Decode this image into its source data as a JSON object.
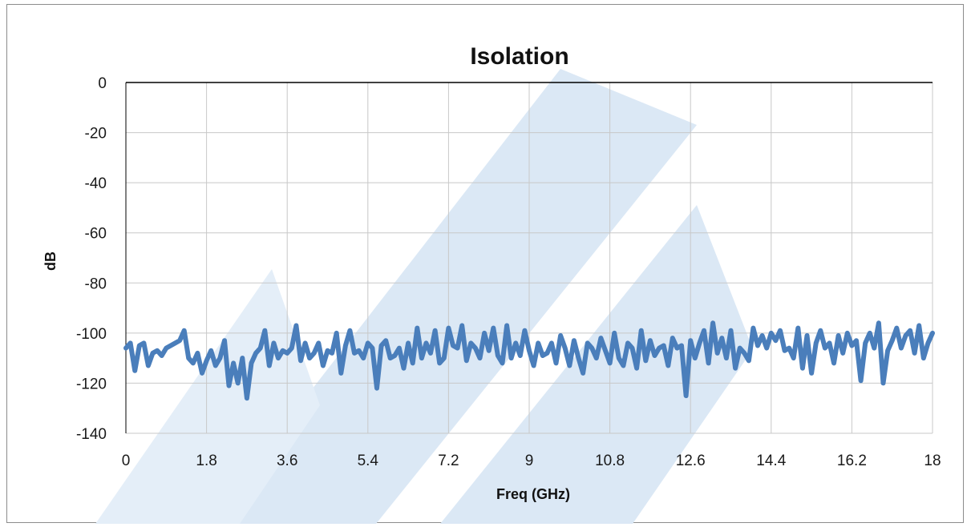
{
  "chart_data": {
    "type": "line",
    "title": "Isolation",
    "xlabel": "Freq (GHz)",
    "ylabel": "dB",
    "xlim": [
      0,
      18
    ],
    "ylim": [
      -140,
      0
    ],
    "xticks": [
      "0",
      "1.8",
      "3.6",
      "5.4",
      "7.2",
      "9",
      "10.8",
      "12.6",
      "14.4",
      "16.2",
      "18"
    ],
    "yticks": [
      "0",
      "-20",
      "-40",
      "-60",
      "-80",
      "-100",
      "-120",
      "-140"
    ],
    "grid": true,
    "legend": "none",
    "colors": {
      "series": "#4a7ebb",
      "grid": "#c8c8c8",
      "watermark": "#dbe8f5"
    },
    "series": [
      {
        "x": [
          0,
          0.1,
          0.2,
          0.3,
          0.4,
          0.5,
          0.6,
          0.7,
          0.8,
          0.9,
          1.0,
          1.1,
          1.2,
          1.3,
          1.4,
          1.5,
          1.6,
          1.7,
          1.8,
          1.9,
          2.0,
          2.1,
          2.2,
          2.3,
          2.4,
          2.5,
          2.6,
          2.7,
          2.8,
          2.9,
          3.0,
          3.1,
          3.2,
          3.3,
          3.4,
          3.5,
          3.6,
          3.7,
          3.8,
          3.9,
          4.0,
          4.1,
          4.2,
          4.3,
          4.4,
          4.5,
          4.6,
          4.7,
          4.8,
          4.9,
          5.0,
          5.1,
          5.2,
          5.3,
          5.4,
          5.5,
          5.6,
          5.7,
          5.8,
          5.9,
          6.0,
          6.1,
          6.2,
          6.3,
          6.4,
          6.5,
          6.6,
          6.7,
          6.8,
          6.9,
          7.0,
          7.1,
          7.2,
          7.3,
          7.4,
          7.5,
          7.6,
          7.7,
          7.8,
          7.9,
          8.0,
          8.1,
          8.2,
          8.3,
          8.4,
          8.5,
          8.6,
          8.7,
          8.8,
          8.9,
          9.0,
          9.1,
          9.2,
          9.3,
          9.4,
          9.5,
          9.6,
          9.7,
          9.8,
          9.9,
          10.0,
          10.1,
          10.2,
          10.3,
          10.4,
          10.5,
          10.6,
          10.7,
          10.8,
          10.9,
          11.0,
          11.1,
          11.2,
          11.3,
          11.4,
          11.5,
          11.6,
          11.7,
          11.8,
          11.9,
          12.0,
          12.1,
          12.2,
          12.3,
          12.4,
          12.5,
          12.6,
          12.7,
          12.8,
          12.9,
          13.0,
          13.1,
          13.2,
          13.3,
          13.4,
          13.5,
          13.6,
          13.7,
          13.8,
          13.9,
          14.0,
          14.1,
          14.2,
          14.3,
          14.4,
          14.5,
          14.6,
          14.7,
          14.8,
          14.9,
          15.0,
          15.1,
          15.2,
          15.3,
          15.4,
          15.5,
          15.6,
          15.7,
          15.8,
          15.9,
          16.0,
          16.1,
          16.2,
          16.3,
          16.4,
          16.5,
          16.6,
          16.7,
          16.8,
          16.9,
          17.0,
          17.1,
          17.2,
          17.3,
          17.4,
          17.5,
          17.6,
          17.7,
          17.8,
          17.9,
          18.0
        ],
        "y": [
          -106,
          -104,
          -115,
          -105,
          -104,
          -113,
          -108,
          -107,
          -109,
          -106,
          -105,
          -104,
          -103,
          -99,
          -110,
          -112,
          -108,
          -116,
          -111,
          -107,
          -113,
          -110,
          -103,
          -121,
          -112,
          -120,
          -110,
          -126,
          -112,
          -108,
          -106,
          -99,
          -113,
          -104,
          -110,
          -107,
          -108,
          -106,
          -97,
          -111,
          -104,
          -110,
          -108,
          -104,
          -113,
          -107,
          -108,
          -100,
          -116,
          -105,
          -99,
          -108,
          -107,
          -110,
          -104,
          -106,
          -122,
          -105,
          -103,
          -110,
          -109,
          -106,
          -114,
          -104,
          -112,
          -98,
          -110,
          -104,
          -108,
          -99,
          -112,
          -110,
          -98,
          -105,
          -106,
          -97,
          -111,
          -104,
          -106,
          -110,
          -100,
          -107,
          -98,
          -109,
          -112,
          -97,
          -110,
          -104,
          -109,
          -99,
          -107,
          -113,
          -104,
          -109,
          -108,
          -104,
          -112,
          -101,
          -106,
          -113,
          -103,
          -110,
          -116,
          -104,
          -106,
          -110,
          -102,
          -107,
          -112,
          -100,
          -110,
          -113,
          -104,
          -106,
          -114,
          -99,
          -111,
          -103,
          -109,
          -106,
          -105,
          -113,
          -102,
          -106,
          -105,
          -125,
          -103,
          -110,
          -104,
          -99,
          -112,
          -96,
          -108,
          -102,
          -110,
          -99,
          -114,
          -106,
          -108,
          -111,
          -98,
          -105,
          -101,
          -106,
          -100,
          -103,
          -99,
          -107,
          -106,
          -110,
          -98,
          -114,
          -101,
          -116,
          -104,
          -99,
          -106,
          -104,
          -112,
          -101,
          -108,
          -100,
          -105,
          -103,
          -119,
          -104,
          -100,
          -106,
          -96,
          -120,
          -107,
          -103,
          -98,
          -106,
          -101,
          -99,
          -108,
          -97,
          -110,
          -104,
          -100
        ]
      }
    ]
  }
}
